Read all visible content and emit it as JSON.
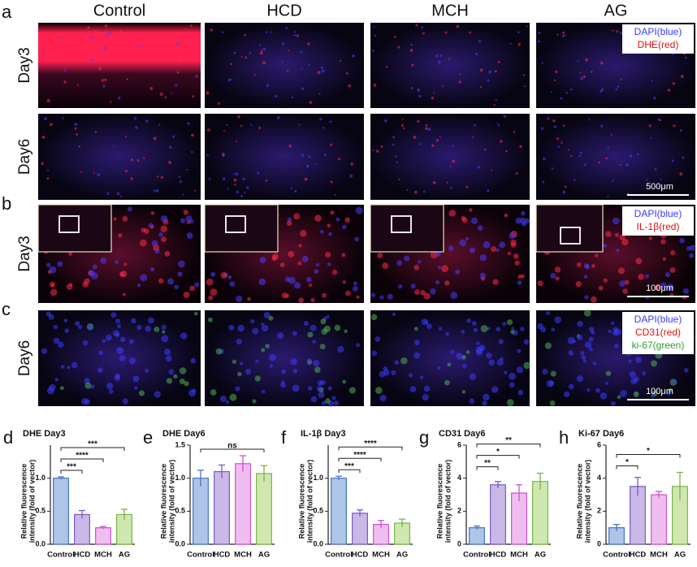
{
  "figure": {
    "panel_labels": [
      "a",
      "b",
      "c"
    ],
    "columns": [
      "Control",
      "HCD",
      "MCH",
      "AG"
    ],
    "rows": [
      {
        "label": "Day3"
      },
      {
        "label": "Day6",
        "scale_bar": "500μm"
      },
      {
        "label": "Day3",
        "scale_bar": "100μm"
      },
      {
        "label": "Day6",
        "scale_bar": "100μm"
      }
    ],
    "legends": [
      [
        "DAPI(blue)",
        "DHE(red)"
      ],
      [
        "DAPI(blue)",
        "IL-1β(red)"
      ],
      [
        "DAPI(blue)",
        "CD31(red)",
        "ki-67(green)"
      ]
    ]
  },
  "chart_data": [
    {
      "type": "bar",
      "panel_label": "d",
      "title": "DHE Day3",
      "ylabel": [
        "Relative fluorescence",
        "intensity (fold of vector)"
      ],
      "categories": [
        "Control",
        "HCD",
        "MCH",
        "AG"
      ],
      "values": [
        1.0,
        0.45,
        0.25,
        0.45
      ],
      "errors": [
        0.02,
        0.06,
        0.02,
        0.08
      ],
      "colors": [
        "#aec5e8",
        "#c9b8e8",
        "#f0bdf0",
        "#cfe8b0"
      ],
      "edge_colors": [
        "#4a72c4",
        "#7a5cc0",
        "#cc55cc",
        "#7ab34a"
      ],
      "ylim": [
        0,
        1.5
      ],
      "yticks": [
        {
          "value": 0,
          "label": "0.0"
        },
        {
          "value": 0.5,
          "label": "0.5"
        },
        {
          "value": 1,
          "label": "1.0"
        }
      ],
      "comparisons": [
        {
          "from": 0,
          "to": 1,
          "label": "***"
        },
        {
          "from": 0,
          "to": 2,
          "label": "****"
        },
        {
          "from": 0,
          "to": 3,
          "label": "***"
        }
      ]
    },
    {
      "type": "bar",
      "panel_label": "e",
      "title": "DHE Day6",
      "ylabel": [
        "Relative fluorescence",
        "intensity (fold of vector)"
      ],
      "categories": [
        "Control",
        "HCD",
        "MCH",
        "AG"
      ],
      "values": [
        1.0,
        1.1,
        1.22,
        1.07
      ],
      "errors": [
        0.12,
        0.1,
        0.12,
        0.12
      ],
      "colors": [
        "#aec5e8",
        "#c9b8e8",
        "#f0bdf0",
        "#cfe8b0"
      ],
      "edge_colors": [
        "#4a72c4",
        "#7a5cc0",
        "#cc55cc",
        "#7ab34a"
      ],
      "ylim": [
        0,
        1.5
      ],
      "yticks": [
        {
          "value": 0,
          "label": "0.0"
        },
        {
          "value": 0.5,
          "label": "0.5"
        },
        {
          "value": 1,
          "label": "1.0"
        },
        {
          "value": 1.5,
          "label": "1.5"
        }
      ],
      "comparisons": [
        {
          "from": 0,
          "to": 3,
          "label": "ns"
        }
      ]
    },
    {
      "type": "bar",
      "panel_label": "f",
      "title": "IL-1β Day3",
      "ylabel": [
        "Relative fluorescence",
        "intensity (fold of vector)"
      ],
      "categories": [
        "Control",
        "HCD",
        "MCH",
        "AG"
      ],
      "values": [
        1.0,
        0.47,
        0.3,
        0.32
      ],
      "errors": [
        0.03,
        0.05,
        0.06,
        0.06
      ],
      "colors": [
        "#aec5e8",
        "#c9b8e8",
        "#f0bdf0",
        "#cfe8b0"
      ],
      "edge_colors": [
        "#4a72c4",
        "#7a5cc0",
        "#cc55cc",
        "#7ab34a"
      ],
      "ylim": [
        0,
        1.5
      ],
      "yticks": [
        {
          "value": 0,
          "label": "0.0"
        },
        {
          "value": 0.5,
          "label": "0.5"
        },
        {
          "value": 1,
          "label": "1.0"
        }
      ],
      "comparisons": [
        {
          "from": 0,
          "to": 1,
          "label": "***"
        },
        {
          "from": 0,
          "to": 2,
          "label": "****"
        },
        {
          "from": 0,
          "to": 3,
          "label": "****"
        }
      ]
    },
    {
      "type": "bar",
      "panel_label": "g",
      "title": "CD31 Day6",
      "ylabel": [
        "Relative fluorescence",
        "intensity (fold of vector)"
      ],
      "categories": [
        "Control",
        "HCD",
        "MCH",
        "AG"
      ],
      "values": [
        1.0,
        3.6,
        3.1,
        3.8
      ],
      "errors": [
        0.1,
        0.2,
        0.5,
        0.5
      ],
      "colors": [
        "#aec5e8",
        "#c9b8e8",
        "#f0bdf0",
        "#cfe8b0"
      ],
      "edge_colors": [
        "#4a72c4",
        "#7a5cc0",
        "#cc55cc",
        "#7ab34a"
      ],
      "ylim": [
        0,
        6
      ],
      "yticks": [
        0,
        2,
        4,
        6
      ],
      "comparisons": [
        {
          "from": 0,
          "to": 1,
          "label": "**"
        },
        {
          "from": 0,
          "to": 2,
          "label": "*"
        },
        {
          "from": 0,
          "to": 3,
          "label": "**"
        }
      ]
    },
    {
      "type": "bar",
      "panel_label": "h",
      "title": "Ki-67 Day6",
      "ylabel": [
        "Relative fluorescence",
        "intensity (fold of vector)"
      ],
      "categories": [
        "Control",
        "HCD",
        "MCH",
        "AG"
      ],
      "values": [
        1.0,
        3.5,
        3.0,
        3.5
      ],
      "errors": [
        0.2,
        0.55,
        0.2,
        0.85
      ],
      "colors": [
        "#aec5e8",
        "#c9b8e8",
        "#f0bdf0",
        "#cfe8b0"
      ],
      "edge_colors": [
        "#4a72c4",
        "#7a5cc0",
        "#cc55cc",
        "#7ab34a"
      ],
      "ylim": [
        0,
        6
      ],
      "yticks": [
        0,
        2,
        4,
        6
      ],
      "comparisons": [
        {
          "from": 0,
          "to": 1,
          "label": "*"
        },
        {
          "from": 0,
          "to": 3,
          "label": "*"
        }
      ]
    }
  ]
}
